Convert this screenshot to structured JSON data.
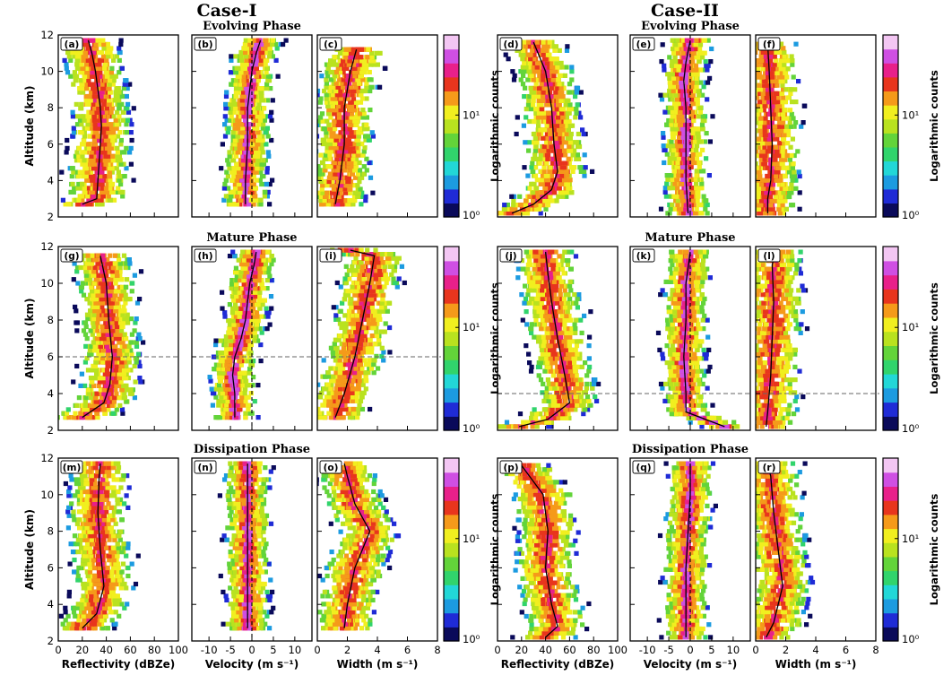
{
  "case_titles": [
    "Case-I",
    "Case-II"
  ],
  "phase_titles": [
    "Evolving Phase",
    "Mature Phase",
    "Dissipation Phase"
  ],
  "axis_labels": {
    "altitude": "Altitude (km)",
    "reflectivity": "Reflectivity (dBZe)",
    "velocity": "Velocity (m s⁻¹)",
    "width": "Width (m s⁻¹)"
  },
  "colorbar": {
    "label": "Logarithmic counts",
    "ticks": [
      "10⁰",
      "10¹"
    ],
    "colors": [
      "#0a0a5a",
      "#1f2bd6",
      "#1c9be0",
      "#22d7d7",
      "#31d46c",
      "#63d43a",
      "#b9e21f",
      "#f1ef1f",
      "#f59a1a",
      "#e8351d",
      "#e8208a",
      "#cf4fe3",
      "#f3c6f3"
    ]
  },
  "chart_data": [
    {
      "type": "heatmap",
      "panel": "(a)",
      "case": "Case-I",
      "phase": "Evolving Phase",
      "variable": "Reflectivity",
      "xlabel": "",
      "ylabel": "Altitude (km)",
      "xlim": [
        0,
        100
      ],
      "ylim": [
        2,
        12
      ],
      "xticks": [],
      "yticks": [
        "2",
        "4",
        "6",
        "8",
        "10",
        "12"
      ],
      "profile_alt": [
        2.7,
        3,
        4,
        5,
        6,
        7,
        8,
        9,
        10,
        11,
        11.7
      ],
      "profile_x": [
        20,
        32,
        33,
        34,
        35,
        36,
        35,
        33,
        31,
        28,
        25
      ],
      "dashed_h": null,
      "dashed_v": null
    },
    {
      "type": "heatmap",
      "panel": "(b)",
      "case": "Case-I",
      "phase": "Evolving Phase",
      "variable": "Velocity",
      "xlabel": "",
      "ylabel": "",
      "xlim": [
        -14,
        14
      ],
      "ylim": [
        2,
        12
      ],
      "xticks": [],
      "yticks": [],
      "profile_alt": [
        2.7,
        4,
        6,
        8,
        10,
        11,
        11.7
      ],
      "profile_x": [
        -1.5,
        -1.5,
        -1,
        -1,
        0,
        1,
        2
      ],
      "dashed_h": null,
      "dashed_v": 0
    },
    {
      "type": "heatmap",
      "panel": "(c)",
      "case": "Case-I",
      "phase": "Evolving Phase",
      "variable": "Width",
      "xlabel": "",
      "ylabel": "",
      "xlim": [
        0,
        8
      ],
      "ylim": [
        2,
        12
      ],
      "xticks": [],
      "yticks": [],
      "profile_alt": [
        2.7,
        4,
        6,
        8,
        10,
        11.2
      ],
      "profile_x": [
        1.2,
        1.5,
        1.8,
        1.8,
        2.2,
        2.6
      ],
      "dashed_h": null,
      "dashed_v": null
    },
    {
      "type": "heatmap",
      "panel": "(d)",
      "case": "Case-II",
      "phase": "Evolving Phase",
      "variable": "Reflectivity",
      "xlabel": "",
      "ylabel": "",
      "xlim": [
        0,
        100
      ],
      "ylim": [
        2,
        12
      ],
      "xticks": [],
      "yticks": [],
      "profile_alt": [
        2.2,
        2.7,
        3.5,
        4.5,
        6,
        8,
        10,
        11.6
      ],
      "profile_x": [
        12,
        30,
        45,
        50,
        47,
        45,
        40,
        30
      ],
      "dashed_h": null,
      "dashed_v": null
    },
    {
      "type": "heatmap",
      "panel": "(e)",
      "case": "Case-II",
      "phase": "Evolving Phase",
      "variable": "Velocity",
      "xlabel": "",
      "ylabel": "",
      "xlim": [
        -14,
        14
      ],
      "ylim": [
        2,
        12
      ],
      "xticks": [],
      "yticks": [],
      "profile_alt": [
        2.2,
        4,
        6,
        8,
        9.5,
        10.5,
        11.7
      ],
      "profile_x": [
        -0.5,
        -1,
        -1,
        -1,
        -1.5,
        -1,
        0
      ],
      "dashed_h": null,
      "dashed_v": 0
    },
    {
      "type": "heatmap",
      "panel": "(f)",
      "case": "Case-II",
      "phase": "Evolving Phase",
      "variable": "Width",
      "xlabel": "",
      "ylabel": "",
      "xlim": [
        0,
        8
      ],
      "ylim": [
        2,
        12
      ],
      "xticks": [],
      "yticks": [],
      "profile_alt": [
        2.2,
        3,
        4,
        6,
        8,
        10,
        11.5
      ],
      "profile_x": [
        0.8,
        0.8,
        1,
        1.1,
        1,
        0.9,
        0.8
      ],
      "dashed_h": null,
      "dashed_v": null
    },
    {
      "type": "heatmap",
      "panel": "(g)",
      "case": "Case-I",
      "phase": "Mature Phase",
      "variable": "Reflectivity",
      "xlabel": "",
      "ylabel": "Altitude (km)",
      "xlim": [
        0,
        100
      ],
      "ylim": [
        2,
        12
      ],
      "xticks": [],
      "yticks": [
        "2",
        "4",
        "6",
        "8",
        "10",
        "12"
      ],
      "profile_alt": [
        2.7,
        3.5,
        4.5,
        6,
        8,
        10,
        11.5
      ],
      "profile_x": [
        20,
        38,
        43,
        45,
        42,
        40,
        35
      ],
      "dashed_h": 6,
      "dashed_v": null
    },
    {
      "type": "heatmap",
      "panel": "(h)",
      "case": "Case-I",
      "phase": "Mature Phase",
      "variable": "Velocity",
      "xlabel": "",
      "ylabel": "",
      "xlim": [
        -14,
        14
      ],
      "ylim": [
        2,
        12
      ],
      "xticks": [],
      "yticks": [],
      "profile_alt": [
        2.7,
        4,
        5,
        6,
        7,
        8,
        9,
        10,
        11,
        11.7
      ],
      "profile_x": [
        -4,
        -4,
        -4.5,
        -4,
        -2.5,
        -1.5,
        -1,
        -0.5,
        0.5,
        1
      ],
      "dashed_h": 6,
      "dashed_v": 0
    },
    {
      "type": "heatmap",
      "panel": "(i)",
      "case": "Case-I",
      "phase": "Mature Phase",
      "variable": "Width",
      "xlabel": "",
      "ylabel": "",
      "xlim": [
        0,
        8
      ],
      "ylim": [
        2,
        12
      ],
      "xticks": [],
      "yticks": [],
      "profile_alt": [
        2.7,
        4,
        6,
        8,
        10,
        11.5,
        11.8
      ],
      "profile_x": [
        1.2,
        1.8,
        2.5,
        3,
        3.5,
        3.8,
        2.2
      ],
      "dashed_h": 6,
      "dashed_v": null
    },
    {
      "type": "heatmap",
      "panel": "(j)",
      "case": "Case-II",
      "phase": "Mature Phase",
      "variable": "Reflectivity",
      "xlabel": "",
      "ylabel": "",
      "xlim": [
        0,
        100
      ],
      "ylim": [
        2,
        12
      ],
      "xticks": [],
      "yticks": [],
      "profile_alt": [
        2.2,
        2.6,
        3.5,
        5,
        7,
        9,
        10.5,
        11.7
      ],
      "profile_x": [
        18,
        42,
        60,
        56,
        50,
        45,
        42,
        40
      ],
      "dashed_h": 4,
      "dashed_v": null
    },
    {
      "type": "heatmap",
      "panel": "(k)",
      "case": "Case-II",
      "phase": "Mature Phase",
      "variable": "Velocity",
      "xlabel": "",
      "ylabel": "",
      "xlim": [
        -14,
        14
      ],
      "ylim": [
        2,
        12
      ],
      "xticks": [],
      "yticks": [],
      "profile_alt": [
        2.2,
        3,
        4,
        6,
        8,
        10,
        11.7
      ],
      "profile_x": [
        8,
        -1,
        -1,
        -1.5,
        -1,
        -1,
        0
      ],
      "dashed_h": 4,
      "dashed_v": 0
    },
    {
      "type": "heatmap",
      "panel": "(l)",
      "case": "Case-II",
      "phase": "Mature Phase",
      "variable": "Width",
      "xlabel": "",
      "ylabel": "",
      "xlim": [
        0,
        8
      ],
      "ylim": [
        2,
        12
      ],
      "xticks": [],
      "yticks": [],
      "profile_alt": [
        2.2,
        3,
        5,
        7,
        9,
        11,
        11.7
      ],
      "profile_x": [
        0.7,
        0.8,
        1,
        1.1,
        1.2,
        1.1,
        1.3
      ],
      "dashed_h": 4,
      "dashed_v": null
    },
    {
      "type": "heatmap",
      "panel": "(m)",
      "case": "Case-I",
      "phase": "Dissipation Phase",
      "variable": "Reflectivity",
      "xlabel": "Reflectivity (dBZe)",
      "ylabel": "Altitude (km)",
      "xlim": [
        0,
        100
      ],
      "ylim": [
        2,
        12
      ],
      "xticks": [
        "0",
        "20",
        "40",
        "60",
        "80",
        "100"
      ],
      "yticks": [
        "2",
        "4",
        "6",
        "8",
        "10",
        "12"
      ],
      "profile_alt": [
        2.7,
        3.5,
        5,
        7,
        9,
        11,
        11.7
      ],
      "profile_x": [
        20,
        32,
        38,
        35,
        33,
        34,
        35
      ],
      "dashed_h": null,
      "dashed_v": null
    },
    {
      "type": "heatmap",
      "panel": "(n)",
      "case": "Case-I",
      "phase": "Dissipation Phase",
      "variable": "Velocity",
      "xlabel": "Velocity (m s⁻¹)",
      "ylabel": "",
      "xlim": [
        -14,
        14
      ],
      "ylim": [
        2,
        12
      ],
      "xticks": [
        "-10",
        "-5",
        "0",
        "5",
        "10"
      ],
      "yticks": [],
      "profile_alt": [
        2.7,
        4,
        6,
        8,
        10,
        11.7
      ],
      "profile_x": [
        -1,
        -1,
        -1,
        -1,
        -1,
        -1
      ],
      "dashed_h": null,
      "dashed_v": 0
    },
    {
      "type": "heatmap",
      "panel": "(o)",
      "case": "Case-I",
      "phase": "Dissipation Phase",
      "variable": "Width",
      "xlabel": "Width (m s⁻¹)",
      "ylabel": "",
      "xlim": [
        0,
        8
      ],
      "ylim": [
        2,
        12
      ],
      "xticks": [
        "0",
        "2",
        "4",
        "6",
        "8"
      ],
      "yticks": [],
      "profile_alt": [
        2.7,
        4,
        6,
        7,
        8,
        9.5,
        11,
        11.7
      ],
      "profile_x": [
        1.8,
        2,
        2.5,
        3,
        3.5,
        2.5,
        2,
        1.8
      ],
      "dashed_h": null,
      "dashed_v": null
    },
    {
      "type": "heatmap",
      "panel": "(p)",
      "case": "Case-II",
      "phase": "Dissipation Phase",
      "variable": "Reflectivity",
      "xlabel": "Reflectivity (dBZe)",
      "ylabel": "",
      "xlim": [
        0,
        100
      ],
      "ylim": [
        2,
        12
      ],
      "xticks": [
        "0",
        "20",
        "40",
        "60",
        "80",
        "100"
      ],
      "yticks": [],
      "profile_alt": [
        2.2,
        2.8,
        4,
        6,
        8,
        10,
        11.6
      ],
      "profile_x": [
        40,
        50,
        45,
        40,
        42,
        38,
        20
      ],
      "dashed_h": null,
      "dashed_v": null
    },
    {
      "type": "heatmap",
      "panel": "(q)",
      "case": "Case-II",
      "phase": "Dissipation Phase",
      "variable": "Velocity",
      "xlabel": "Velocity (m s⁻¹)",
      "ylabel": "",
      "xlim": [
        -14,
        14
      ],
      "ylim": [
        2,
        12
      ],
      "xticks": [
        "-10",
        "-5",
        "0",
        "5",
        "10"
      ],
      "yticks": [],
      "profile_alt": [
        2.2,
        4,
        6,
        8,
        10,
        11.7
      ],
      "profile_x": [
        -1,
        -1,
        -1,
        -0.5,
        0,
        0
      ],
      "dashed_h": null,
      "dashed_v": 0
    },
    {
      "type": "heatmap",
      "panel": "(r)",
      "case": "Case-II",
      "phase": "Dissipation Phase",
      "variable": "Width",
      "xlabel": "Width (m s⁻¹)",
      "ylabel": "",
      "xlim": [
        0,
        8
      ],
      "ylim": [
        2,
        12
      ],
      "xticks": [
        "0",
        "2",
        "4",
        "6",
        "8"
      ],
      "yticks": [],
      "profile_alt": [
        2.2,
        3,
        5,
        7,
        9,
        11,
        11.7
      ],
      "profile_x": [
        0.7,
        1.2,
        1.8,
        1.5,
        1.2,
        1,
        0.8
      ],
      "dashed_h": null,
      "dashed_v": null
    }
  ]
}
